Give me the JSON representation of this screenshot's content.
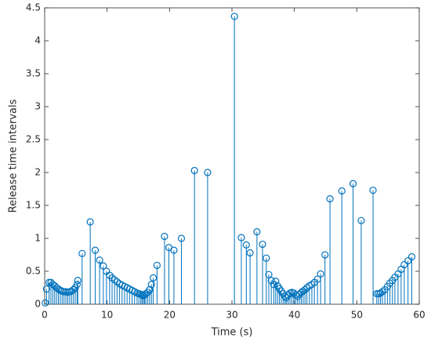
{
  "chart_data": {
    "type": "stem",
    "xlabel": "Time (s)",
    "ylabel": "Release time intervals",
    "color": "#0072bd",
    "x": [
      0.1,
      0.3,
      0.7,
      1.0,
      1.3,
      1.6,
      1.9,
      2.2,
      2.5,
      2.8,
      3.1,
      3.4,
      3.7,
      4.0,
      4.3,
      4.6,
      4.9,
      5.2,
      5.3,
      6.0,
      7.3,
      8.1,
      8.8,
      9.4,
      9.9,
      10.4,
      10.8,
      11.2,
      11.6,
      12.0,
      12.4,
      12.8,
      13.2,
      13.6,
      14.0,
      14.4,
      14.8,
      15.1,
      15.4,
      15.6,
      15.8,
      16.0,
      16.2,
      16.5,
      16.8,
      17.1,
      17.4,
      18.0,
      19.2,
      19.9,
      20.7,
      21.9,
      24.0,
      26.1,
      30.4,
      31.5,
      32.3,
      32.9,
      34.0,
      34.9,
      35.5,
      35.9,
      36.3,
      36.7,
      37.0,
      37.3,
      37.6,
      37.9,
      38.2,
      38.5,
      38.7,
      39.0,
      39.3,
      39.6,
      39.9,
      40.2,
      40.5,
      40.8,
      41.1,
      41.4,
      41.7,
      42.0,
      42.4,
      42.8,
      43.2,
      43.7,
      44.2,
      44.9,
      45.7,
      47.6,
      49.4,
      50.7,
      52.6,
      53.2,
      53.5,
      53.8,
      54.1,
      54.5,
      54.9,
      55.3,
      55.7,
      56.1,
      56.6,
      57.1,
      57.6,
      58.2,
      58.8
    ],
    "values": [
      0.02,
      0.23,
      0.33,
      0.33,
      0.3,
      0.28,
      0.25,
      0.23,
      0.21,
      0.2,
      0.19,
      0.19,
      0.18,
      0.19,
      0.2,
      0.22,
      0.25,
      0.3,
      0.36,
      0.77,
      1.25,
      0.82,
      0.67,
      0.58,
      0.5,
      0.44,
      0.4,
      0.37,
      0.34,
      0.31,
      0.29,
      0.27,
      0.25,
      0.23,
      0.21,
      0.19,
      0.17,
      0.16,
      0.15,
      0.14,
      0.13,
      0.14,
      0.16,
      0.18,
      0.22,
      0.3,
      0.4,
      0.59,
      1.03,
      0.86,
      0.82,
      1.0,
      2.03,
      2.0,
      4.37,
      1.01,
      0.9,
      0.78,
      1.1,
      0.91,
      0.7,
      0.45,
      0.36,
      0.3,
      0.35,
      0.28,
      0.24,
      0.2,
      0.16,
      0.12,
      0.1,
      0.14,
      0.17,
      0.18,
      0.17,
      0.14,
      0.12,
      0.15,
      0.18,
      0.2,
      0.22,
      0.25,
      0.28,
      0.3,
      0.33,
      0.38,
      0.46,
      0.75,
      1.6,
      1.72,
      1.83,
      1.27,
      1.73,
      0.16,
      0.16,
      0.17,
      0.19,
      0.22,
      0.27,
      0.32,
      0.36,
      0.41,
      0.46,
      0.53,
      0.6,
      0.66,
      0.72
    ],
    "xlim": [
      0,
      60
    ],
    "xticks": [
      0,
      10,
      20,
      30,
      40,
      50,
      60
    ],
    "ylim": [
      0,
      4.5
    ],
    "yticks": [
      0,
      0.5,
      1,
      1.5,
      2,
      2.5,
      3,
      3.5,
      4,
      4.5
    ]
  }
}
